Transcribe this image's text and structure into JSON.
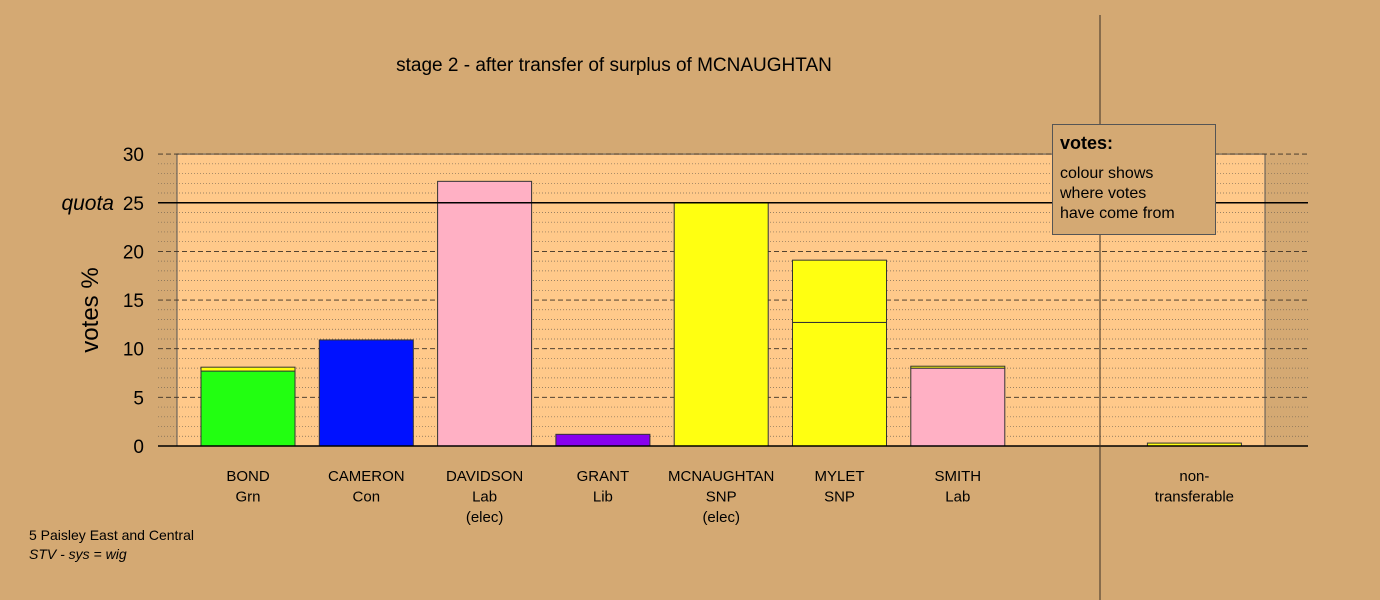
{
  "chart_data": {
    "type": "bar",
    "title": "stage 2 - after transfer of surplus of MCNAUGHTAN",
    "ylabel": "votes %",
    "ylim": [
      0,
      30
    ],
    "yticks": [
      0,
      5,
      10,
      15,
      20,
      25,
      30
    ],
    "quota": {
      "label": "quota",
      "value": 25
    },
    "categories": [
      {
        "name": "BOND",
        "party": "Grn",
        "note": ""
      },
      {
        "name": "CAMERON",
        "party": "Con",
        "note": ""
      },
      {
        "name": "DAVIDSON",
        "party": "Lab",
        "note": "(elec)"
      },
      {
        "name": "GRANT",
        "party": "Lib",
        "note": ""
      },
      {
        "name": "MCNAUGHTAN",
        "party": "SNP",
        "note": "(elec)"
      },
      {
        "name": "MYLET",
        "party": "SNP",
        "note": ""
      },
      {
        "name": "SMITH",
        "party": "Lab",
        "note": ""
      },
      {
        "name": "",
        "party": "",
        "note": ""
      },
      {
        "name": "non-",
        "party": "transferable",
        "note": ""
      }
    ],
    "bars": [
      {
        "segments": [
          {
            "value": 7.7,
            "color": "#22ff11"
          },
          {
            "value": 0.4,
            "color": "#ffff11"
          }
        ]
      },
      {
        "segments": [
          {
            "value": 10.9,
            "color": "#0011ff"
          }
        ]
      },
      {
        "segments": [
          {
            "value": 27.2,
            "color": "#ffb0c4"
          }
        ]
      },
      {
        "segments": [
          {
            "value": 1.2,
            "color": "#8800ee"
          }
        ]
      },
      {
        "segments": [
          {
            "value": 25.0,
            "color": "#ffff11"
          }
        ]
      },
      {
        "segments": [
          {
            "value": 12.7,
            "color": "#ffff11"
          },
          {
            "value": 6.4,
            "color": "#ffff11"
          }
        ]
      },
      {
        "segments": [
          {
            "value": 8.0,
            "color": "#ffb0c4"
          },
          {
            "value": 0.2,
            "color": "#ffff11"
          }
        ]
      },
      {
        "segments": []
      },
      {
        "segments": [
          {
            "value": 0.3,
            "color": "#ffff11"
          }
        ]
      }
    ],
    "grid": true,
    "legend": {
      "title": "votes:",
      "lines": [
        "colour shows",
        "where votes",
        "have come from"
      ],
      "position": "top-right"
    }
  },
  "footer": {
    "constituency": "5 Paisley East and Central",
    "system": "STV - sys = wig"
  },
  "colors": {
    "background": "#d4a973",
    "plot_area": "#ffc98a"
  }
}
